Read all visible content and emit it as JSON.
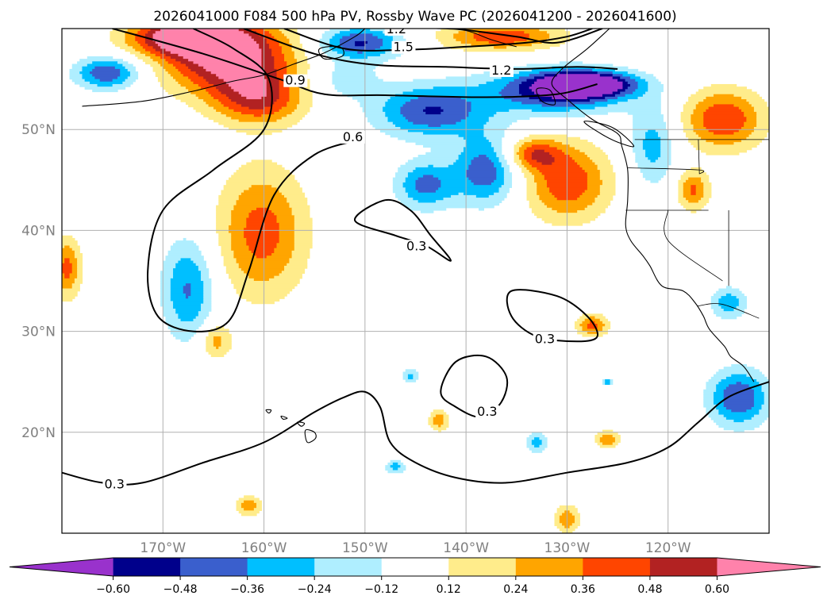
{
  "chart_data": {
    "type": "heatmap",
    "title": "2026041000 F084 500 hPa PV, Rossby Wave PC (2026041200 - 2026041600)",
    "xlim": [
      -180,
      -110
    ],
    "ylim": [
      10,
      60
    ],
    "x_ticks": [
      -170,
      -160,
      -150,
      -140,
      -130,
      -120
    ],
    "x_tick_labels": [
      "170°W",
      "160°W",
      "150°W",
      "140°W",
      "130°W",
      "120°W"
    ],
    "y_ticks": [
      20,
      30,
      40,
      50
    ],
    "y_tick_labels": [
      "20°N",
      "30°N",
      "40°N",
      "50°N"
    ],
    "grid": true,
    "colorbar": {
      "levels": [
        -0.6,
        -0.48,
        -0.36,
        -0.24,
        -0.12,
        0.12,
        0.24,
        0.36,
        0.48,
        0.6
      ],
      "labels": [
        "−0.60",
        "−0.48",
        "−0.36",
        "−0.24",
        "−0.12",
        "0.12",
        "0.24",
        "0.36",
        "0.48",
        "0.60"
      ],
      "colors": [
        "#9932cc",
        "#00008b",
        "#3a5fcd",
        "#00bfff",
        "#afeeff",
        "#ffffff",
        "#ffec8b",
        "#ffa500",
        "#ff4500",
        "#b22222",
        "#ff82ab"
      ],
      "extend": "both"
    },
    "contour_levels": [
      0.3,
      0.6,
      0.9,
      1.2,
      1.5
    ],
    "contour_labels": [
      {
        "text": "0.3",
        "lon": -175.8,
        "lat": 14.6
      },
      {
        "text": "0.3",
        "lon": -138.9,
        "lat": 21.8
      },
      {
        "text": "0.3",
        "lon": -133.2,
        "lat": 29.0
      },
      {
        "text": "0.3",
        "lon": -145.9,
        "lat": 38.2
      },
      {
        "text": "0.6",
        "lon": -152.2,
        "lat": 49.0
      },
      {
        "text": "0.9",
        "lon": -157.9,
        "lat": 54.6
      },
      {
        "text": "1.2",
        "lon": -147.9,
        "lat": 59.7
      },
      {
        "text": "1.5",
        "lon": -147.2,
        "lat": 57.9
      },
      {
        "text": "1.2",
        "lon": -137.5,
        "lat": 55.6
      }
    ],
    "pv_blobs": [
      {
        "lon": -163.5,
        "lat": 57.2,
        "rx": 6.5,
        "ry": 3.6,
        "v": 0.7
      },
      {
        "lon": -168.0,
        "lat": 59.2,
        "rx": 5.5,
        "ry": 1.8,
        "v": 0.62
      },
      {
        "lon": -160.5,
        "lat": 53.0,
        "rx": 4.5,
        "ry": 2.6,
        "v": 0.45
      },
      {
        "lon": -175.5,
        "lat": 55.6,
        "rx": 3.2,
        "ry": 1.6,
        "v": -0.48
      },
      {
        "lon": -150.5,
        "lat": 58.6,
        "rx": 4.2,
        "ry": 1.6,
        "v": -0.5
      },
      {
        "lon": -136.5,
        "lat": 59.2,
        "rx": 6.0,
        "ry": 1.4,
        "v": 0.45
      },
      {
        "lon": -152.0,
        "lat": 55.0,
        "rx": 3.5,
        "ry": 2.0,
        "v": -0.2
      },
      {
        "lon": -143.5,
        "lat": 51.8,
        "rx": 5.5,
        "ry": 2.6,
        "v": -0.48
      },
      {
        "lon": -131.0,
        "lat": 53.8,
        "rx": 7.0,
        "ry": 2.2,
        "v": -0.55
      },
      {
        "lon": -128.0,
        "lat": 54.5,
        "rx": 4.5,
        "ry": 1.2,
        "v": -0.7
      },
      {
        "lon": -138.0,
        "lat": 46.0,
        "rx": 3.2,
        "ry": 3.4,
        "v": -0.45
      },
      {
        "lon": -144.0,
        "lat": 44.5,
        "rx": 3.0,
        "ry": 2.4,
        "v": -0.4
      },
      {
        "lon": -121.5,
        "lat": 48.5,
        "rx": 2.2,
        "ry": 4.0,
        "v": -0.3
      },
      {
        "lon": -130.0,
        "lat": 44.8,
        "rx": 4.2,
        "ry": 3.8,
        "v": 0.46
      },
      {
        "lon": -133.5,
        "lat": 47.6,
        "rx": 2.8,
        "ry": 1.6,
        "v": 0.4
      },
      {
        "lon": -114.5,
        "lat": 51.0,
        "rx": 4.0,
        "ry": 3.0,
        "v": 0.48
      },
      {
        "lon": -117.5,
        "lat": 44.0,
        "rx": 1.6,
        "ry": 2.0,
        "v": 0.38
      },
      {
        "lon": -160.2,
        "lat": 39.8,
        "rx": 4.4,
        "ry": 6.4,
        "v": 0.42
      },
      {
        "lon": -164.8,
        "lat": 29.0,
        "rx": 1.6,
        "ry": 1.8,
        "v": 0.3
      },
      {
        "lon": -167.5,
        "lat": 34.2,
        "rx": 2.6,
        "ry": 5.0,
        "v": -0.38
      },
      {
        "lon": -179.5,
        "lat": 36.3,
        "rx": 1.4,
        "ry": 3.0,
        "v": 0.4
      },
      {
        "lon": -114.0,
        "lat": 32.8,
        "rx": 1.8,
        "ry": 1.6,
        "v": -0.32
      },
      {
        "lon": -113.0,
        "lat": 23.4,
        "rx": 3.0,
        "ry": 2.8,
        "v": -0.48
      },
      {
        "lon": -127.5,
        "lat": 30.6,
        "rx": 1.6,
        "ry": 1.1,
        "v": 0.4
      },
      {
        "lon": -126.0,
        "lat": 19.3,
        "rx": 1.2,
        "ry": 0.9,
        "v": 0.34
      },
      {
        "lon": -130.0,
        "lat": 11.4,
        "rx": 1.2,
        "ry": 1.4,
        "v": 0.34
      },
      {
        "lon": -161.5,
        "lat": 12.7,
        "rx": 1.3,
        "ry": 1.0,
        "v": 0.32
      },
      {
        "lon": -142.7,
        "lat": 21.2,
        "rx": 1.0,
        "ry": 1.1,
        "v": 0.32
      },
      {
        "lon": -133.0,
        "lat": 19.0,
        "rx": 1.0,
        "ry": 1.1,
        "v": -0.3
      },
      {
        "lon": -147.0,
        "lat": 16.6,
        "rx": 1.0,
        "ry": 0.7,
        "v": -0.3
      },
      {
        "lon": -145.5,
        "lat": 25.6,
        "rx": 0.8,
        "ry": 0.7,
        "v": -0.28
      },
      {
        "lon": -126.0,
        "lat": 25.0,
        "rx": 0.7,
        "ry": 0.4,
        "v": -0.28
      }
    ],
    "pv_contours": [
      {
        "level": 0.3,
        "points": [
          [
            -180,
            16
          ],
          [
            -176,
            15
          ],
          [
            -172,
            15
          ],
          [
            -166,
            17
          ],
          [
            -160,
            19
          ],
          [
            -155,
            22
          ],
          [
            -152,
            23.5
          ],
          [
            -150,
            24
          ],
          [
            -148.5,
            22.5
          ],
          [
            -147.5,
            19
          ],
          [
            -145,
            17
          ],
          [
            -141,
            15.5
          ],
          [
            -136,
            15
          ],
          [
            -130,
            16
          ],
          [
            -124,
            17
          ],
          [
            -120,
            18.5
          ],
          [
            -117,
            21
          ],
          [
            -114,
            23.5
          ],
          [
            -110,
            25
          ]
        ]
      },
      {
        "level": 0.3,
        "closed": true,
        "points": [
          [
            -142.5,
            24
          ],
          [
            -141,
            27
          ],
          [
            -138,
            27.5
          ],
          [
            -136,
            25.5
          ],
          [
            -136.5,
            23
          ],
          [
            -138.5,
            21.5
          ],
          [
            -141,
            22.5
          ]
        ]
      },
      {
        "level": 0.3,
        "closed": true,
        "points": [
          [
            -135.5,
            34
          ],
          [
            -131,
            33.5
          ],
          [
            -128,
            31.5
          ],
          [
            -127,
            29.5
          ],
          [
            -129,
            29
          ],
          [
            -133,
            29.5
          ],
          [
            -135.5,
            31.5
          ]
        ]
      },
      {
        "level": 0.3,
        "closed": true,
        "points": [
          [
            -151,
            41
          ],
          [
            -148,
            43
          ],
          [
            -145.5,
            42
          ],
          [
            -143.5,
            39.5
          ],
          [
            -141.5,
            37
          ],
          [
            -144,
            38.5
          ],
          [
            -147,
            39.5
          ]
        ]
      },
      {
        "level": 0.6,
        "points": [
          [
            -150.5,
            49
          ],
          [
            -155,
            47.5
          ],
          [
            -159,
            43.5
          ],
          [
            -161.5,
            36
          ],
          [
            -163.5,
            31
          ],
          [
            -167,
            30
          ],
          [
            -170.5,
            31.5
          ],
          [
            -171.5,
            36
          ],
          [
            -170,
            42
          ],
          [
            -165,
            46
          ],
          [
            -160,
            50
          ],
          [
            -159.5,
            55
          ],
          [
            -163,
            58
          ],
          [
            -167,
            60
          ]
        ]
      },
      {
        "level": 0.9,
        "points": [
          [
            -175,
            60
          ],
          [
            -166,
            57.5
          ],
          [
            -158.5,
            55
          ],
          [
            -154,
            53.5
          ],
          [
            -148,
            53.4
          ],
          [
            -138,
            53.2
          ],
          [
            -131,
            53.5
          ],
          [
            -127,
            54.5
          ]
        ]
      },
      {
        "level": 1.2,
        "points": [
          [
            -162,
            60
          ],
          [
            -155,
            57.5
          ],
          [
            -149,
            56.4
          ],
          [
            -142,
            56.2
          ],
          [
            -135,
            56
          ],
          [
            -129,
            56.2
          ],
          [
            -125,
            56
          ]
        ]
      },
      {
        "level": 1.5,
        "points": [
          [
            -158,
            60
          ],
          [
            -152,
            58
          ],
          [
            -146,
            57.9
          ],
          [
            -140,
            58.2
          ],
          [
            -134,
            58.6
          ],
          [
            -130,
            59.2
          ],
          [
            -127.5,
            60
          ]
        ]
      },
      {
        "level": 1.2,
        "points": [
          [
            -141,
            60
          ],
          [
            -135,
            59.2
          ],
          [
            -131,
            58.6
          ],
          [
            -126.5,
            60
          ]
        ]
      }
    ],
    "coastlines": [
      {
        "name": "north-america",
        "points": [
          [
            -125.8,
            60
          ],
          [
            -128,
            58
          ],
          [
            -130.5,
            56
          ],
          [
            -131.5,
            54.5
          ],
          [
            -130,
            53
          ],
          [
            -127.5,
            51
          ],
          [
            -125,
            49.6
          ],
          [
            -124.6,
            48.4
          ],
          [
            -124,
            46
          ],
          [
            -124,
            43
          ],
          [
            -124.2,
            40.5
          ],
          [
            -123.7,
            39
          ],
          [
            -122.5,
            37.5
          ],
          [
            -121.8,
            36.5
          ],
          [
            -120.6,
            34.5
          ],
          [
            -118.5,
            34
          ],
          [
            -117.3,
            32.8
          ],
          [
            -116.5,
            31.5
          ],
          [
            -115.9,
            30.2
          ],
          [
            -114.4,
            28.5
          ],
          [
            -113.8,
            27.5
          ],
          [
            -112.5,
            26.5
          ],
          [
            -111.5,
            25
          ]
        ]
      },
      {
        "name": "aleutian-chain",
        "points": [
          [
            -178,
            52.3
          ],
          [
            -172,
            52.8
          ],
          [
            -167,
            53.8
          ],
          [
            -163,
            54.8
          ],
          [
            -160,
            55.4
          ],
          [
            -157,
            56.5
          ],
          [
            -154,
            57.6
          ],
          [
            -151,
            59.2
          ],
          [
            -150,
            60
          ]
        ]
      },
      {
        "name": "gulf-of-alaska-coast",
        "points": [
          [
            -146,
            60
          ],
          [
            -143,
            60
          ],
          [
            -140,
            59.8
          ],
          [
            -137.5,
            58.9
          ],
          [
            -135,
            58.2
          ]
        ]
      },
      {
        "name": "vancouver-island",
        "closed": true,
        "points": [
          [
            -128.3,
            50.8
          ],
          [
            -125.5,
            50.2
          ],
          [
            -123.4,
            48.4
          ],
          [
            -124.6,
            48.6
          ],
          [
            -126.5,
            49.5
          ]
        ]
      },
      {
        "name": "haida-gwaii",
        "closed": true,
        "points": [
          [
            -133,
            54
          ],
          [
            -131.7,
            53.9
          ],
          [
            -131.2,
            52.5
          ],
          [
            -132.5,
            52.8
          ]
        ]
      },
      {
        "name": "kodiak",
        "closed": true,
        "points": [
          [
            -154.5,
            58
          ],
          [
            -152.5,
            58.2
          ],
          [
            -152.2,
            57.3
          ],
          [
            -154,
            57
          ]
        ]
      },
      {
        "name": "hawaii-big-island",
        "closed": true,
        "points": [
          [
            -155.9,
            20.2
          ],
          [
            -155,
            20
          ],
          [
            -154.9,
            19.4
          ],
          [
            -155.7,
            19
          ]
        ]
      },
      {
        "name": "maui",
        "closed": true,
        "points": [
          [
            -156.7,
            21
          ],
          [
            -156,
            20.9
          ],
          [
            -156.3,
            20.6
          ]
        ]
      },
      {
        "name": "oahu",
        "closed": true,
        "points": [
          [
            -158.3,
            21.6
          ],
          [
            -157.7,
            21.4
          ],
          [
            -158.1,
            21.3
          ]
        ]
      },
      {
        "name": "kauai",
        "closed": true,
        "points": [
          [
            -159.8,
            22.2
          ],
          [
            -159.3,
            22.2
          ],
          [
            -159.5,
            21.9
          ]
        ]
      }
    ],
    "borders": [
      {
        "name": "canada-us-border",
        "points": [
          [
            -123.3,
            49
          ],
          [
            -110,
            49
          ]
        ]
      },
      {
        "name": "washington-oregon",
        "points": [
          [
            -124,
            46.2
          ],
          [
            -117,
            46
          ],
          [
            -116.9,
            45.6
          ]
        ]
      },
      {
        "name": "oregon-california",
        "points": [
          [
            -124.2,
            42
          ],
          [
            -116,
            42
          ]
        ]
      },
      {
        "name": "california-nevada",
        "points": [
          [
            -120,
            42
          ],
          [
            -120,
            39
          ],
          [
            -114.6,
            35
          ]
        ]
      },
      {
        "name": "us-mexico-border",
        "points": [
          [
            -117.1,
            32.5
          ],
          [
            -114.7,
            32.7
          ],
          [
            -111,
            31.3
          ]
        ]
      },
      {
        "name": "idaho-west",
        "points": [
          [
            -116.9,
            45.6
          ],
          [
            -117,
            49
          ]
        ]
      },
      {
        "name": "nevada-utah",
        "points": [
          [
            -114,
            42
          ],
          [
            -114,
            34.5
          ]
        ]
      }
    ]
  }
}
